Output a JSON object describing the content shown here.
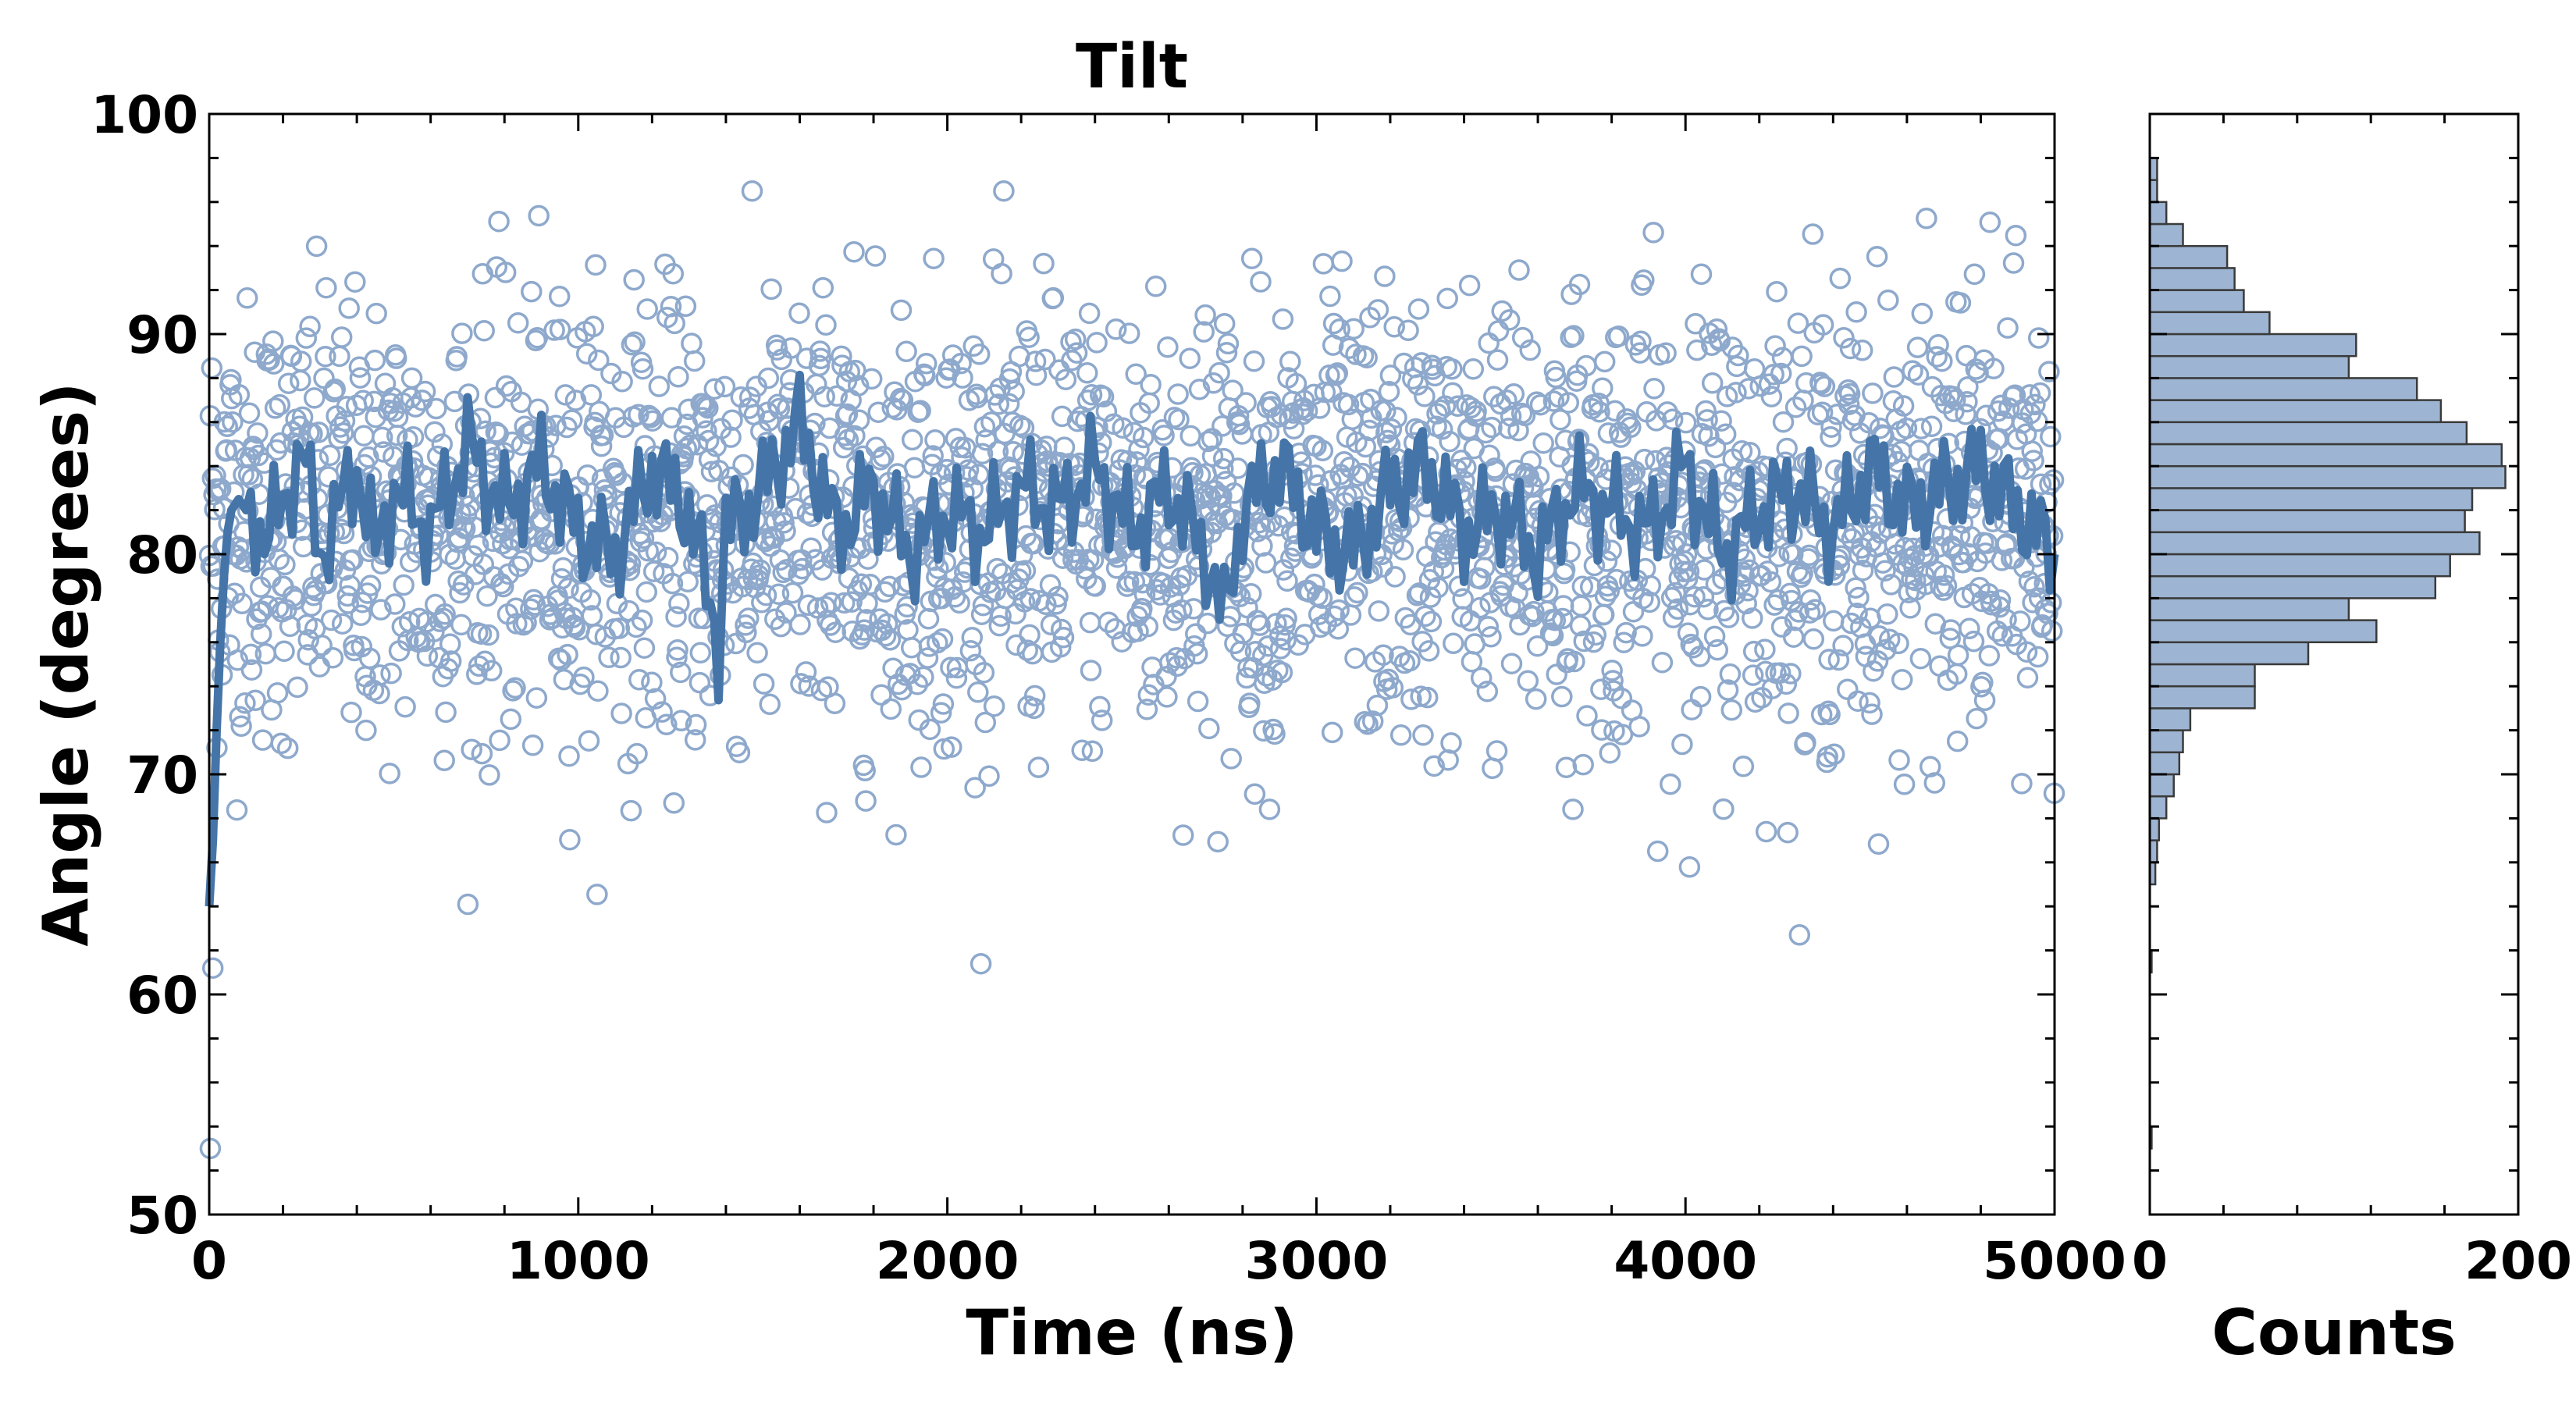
{
  "colors": {
    "main": "#4575a8",
    "scatter_edge": "#8ea9cc",
    "hist_fill": "#9db5d2",
    "hist_edge": "#3a3a3a",
    "axis": "#000000"
  },
  "chart_data": [
    {
      "type": "scatter",
      "title": "Tilt",
      "xlabel": "Time (ns)",
      "ylabel": "Angle (degrees)",
      "xlim": [
        0,
        5000
      ],
      "ylim": [
        50,
        100
      ],
      "x_ticks": [
        "0",
        "1000",
        "2000",
        "3000",
        "4000",
        "5000"
      ],
      "y_ticks": [
        "50",
        "60",
        "70",
        "80",
        "90",
        "100"
      ],
      "grid": false,
      "legend": "none",
      "series": [
        {
          "kind": "scatter",
          "marker": "open-circle",
          "n_points": 2500,
          "time_range": [
            0,
            5000
          ],
          "mean": 81.5,
          "std": 5.0,
          "min_observed": 53,
          "max_observed": 96.5
        },
        {
          "kind": "line",
          "description_of_values": "running average of angle",
          "x": [
            0,
            10,
            20,
            30,
            40,
            50,
            60,
            80,
            100,
            150,
            200,
            250,
            300,
            350,
            400,
            450,
            500,
            600,
            700,
            800,
            900,
            1000,
            1100,
            1200,
            1300,
            1380,
            1400,
            1500,
            1600,
            1700,
            1800,
            1900,
            2000,
            2100,
            2200,
            2300,
            2400,
            2500,
            2600,
            2700,
            2750,
            2800,
            2900,
            3000,
            3100,
            3200,
            3300,
            3400,
            3500,
            3600,
            3700,
            3800,
            3900,
            4000,
            4100,
            4200,
            4300,
            4400,
            4500,
            4600,
            4700,
            4800,
            4900,
            5000
          ],
          "y": [
            64,
            67,
            72,
            76,
            79,
            81,
            82,
            82.5,
            82,
            81,
            82,
            85,
            80,
            82,
            84,
            80,
            83,
            81,
            85,
            82,
            84,
            81,
            80,
            84,
            82,
            76,
            81,
            83,
            86,
            81,
            83,
            80,
            82,
            81,
            83,
            82,
            84,
            81,
            83,
            80,
            77,
            82,
            84,
            81,
            80,
            83,
            84,
            81,
            82,
            80,
            83,
            82,
            81,
            84,
            80,
            82,
            83,
            81,
            84,
            82,
            83,
            84,
            82,
            80
          ]
        }
      ]
    },
    {
      "type": "bar",
      "orientation": "horizontal",
      "xlabel": "Counts",
      "xlim": [
        0,
        200
      ],
      "x_ticks": [
        "0",
        "200"
      ],
      "ylim": [
        50,
        100
      ],
      "bin_width": 1,
      "bins_start": [
        50,
        51,
        52,
        53,
        54,
        55,
        56,
        57,
        58,
        59,
        60,
        61,
        62,
        63,
        64,
        65,
        66,
        67,
        68,
        69,
        70,
        71,
        72,
        73,
        74,
        75,
        76,
        77,
        78,
        79,
        80,
        81,
        82,
        83,
        84,
        85,
        86,
        87,
        88,
        89,
        90,
        91,
        92,
        93,
        94,
        95,
        96,
        97,
        98,
        99
      ],
      "counts": [
        0,
        0,
        0,
        1,
        0,
        0,
        0,
        0,
        0,
        0,
        0,
        1,
        0,
        0,
        0,
        3,
        4,
        5,
        9,
        13,
        16,
        18,
        22,
        57,
        57,
        86,
        123,
        108,
        155,
        163,
        179,
        171,
        175,
        193,
        191,
        172,
        158,
        145,
        108,
        112,
        65,
        51,
        46,
        42,
        18,
        9,
        4,
        4,
        0,
        0
      ]
    }
  ]
}
